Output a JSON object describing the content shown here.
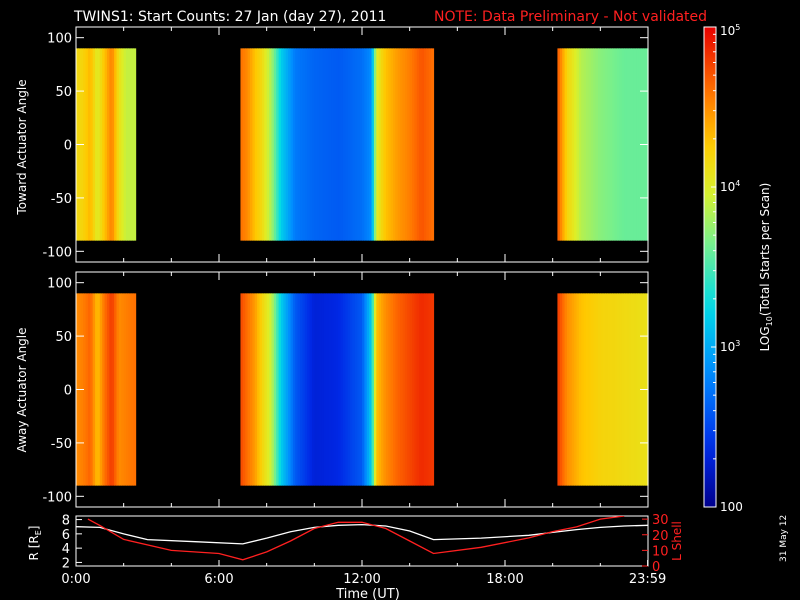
{
  "header": {
    "title": "TWINS1: Start Counts: 27 Jan (day  27), 2011",
    "note": "NOTE: Data Preliminary - Not validated",
    "note_color": "#ff2020"
  },
  "footer": {
    "date_stamp": "31 May 12"
  },
  "chart_data": [
    {
      "type": "heatmap",
      "title": "",
      "ylabel": "Toward Actuator Angle",
      "ylim": [
        -110,
        110
      ],
      "yticks": [
        100,
        50,
        0,
        -50,
        -100
      ],
      "y_data_range": [
        -90,
        90
      ],
      "x_hours_range": [
        0,
        24
      ],
      "data_blocks_hours": [
        [
          0,
          2.5
        ],
        [
          6.9,
          15.0
        ],
        [
          20.2,
          24
        ]
      ],
      "z_log10_profile": [
        {
          "t": 0.0,
          "v": 4.15
        },
        {
          "t": 0.3,
          "v": 4.2
        },
        {
          "t": 0.6,
          "v": 4.35
        },
        {
          "t": 0.9,
          "v": 4.0
        },
        {
          "t": 1.2,
          "v": 4.3
        },
        {
          "t": 1.5,
          "v": 4.55
        },
        {
          "t": 1.8,
          "v": 4.1
        },
        {
          "t": 2.1,
          "v": 3.9
        },
        {
          "t": 2.5,
          "v": 3.9
        },
        {
          "t": 6.9,
          "v": 4.6
        },
        {
          "t": 7.2,
          "v": 4.5
        },
        {
          "t": 7.5,
          "v": 4.3
        },
        {
          "t": 7.8,
          "v": 4.15
        },
        {
          "t": 8.2,
          "v": 3.8
        },
        {
          "t": 8.6,
          "v": 3.2
        },
        {
          "t": 9.2,
          "v": 2.75
        },
        {
          "t": 10.0,
          "v": 2.65
        },
        {
          "t": 11.0,
          "v": 2.6
        },
        {
          "t": 12.0,
          "v": 2.7
        },
        {
          "t": 12.4,
          "v": 2.85
        },
        {
          "t": 12.6,
          "v": 4.0
        },
        {
          "t": 13.0,
          "v": 4.3
        },
        {
          "t": 13.5,
          "v": 4.45
        },
        {
          "t": 14.0,
          "v": 4.55
        },
        {
          "t": 14.5,
          "v": 4.7
        },
        {
          "t": 15.0,
          "v": 4.6
        },
        {
          "t": 20.2,
          "v": 4.7
        },
        {
          "t": 20.6,
          "v": 4.2
        },
        {
          "t": 21.2,
          "v": 3.85
        },
        {
          "t": 22.0,
          "v": 3.7
        },
        {
          "t": 23.0,
          "v": 3.6
        },
        {
          "t": 24.0,
          "v": 3.6
        }
      ]
    },
    {
      "type": "heatmap",
      "title": "",
      "ylabel": "Away Actuator Angle",
      "ylim": [
        -110,
        110
      ],
      "yticks": [
        100,
        50,
        0,
        -50,
        -100
      ],
      "y_data_range": [
        -90,
        90
      ],
      "x_hours_range": [
        0,
        24
      ],
      "data_blocks_hours": [
        [
          0,
          2.5
        ],
        [
          6.9,
          15.0
        ],
        [
          20.2,
          24
        ]
      ],
      "z_log10_profile": [
        {
          "t": 0.0,
          "v": 4.5
        },
        {
          "t": 0.3,
          "v": 4.55
        },
        {
          "t": 0.6,
          "v": 4.65
        },
        {
          "t": 0.9,
          "v": 4.3
        },
        {
          "t": 1.2,
          "v": 4.6
        },
        {
          "t": 1.5,
          "v": 4.8
        },
        {
          "t": 1.8,
          "v": 4.5
        },
        {
          "t": 2.1,
          "v": 4.55
        },
        {
          "t": 2.5,
          "v": 4.6
        },
        {
          "t": 6.9,
          "v": 4.75
        },
        {
          "t": 7.2,
          "v": 4.6
        },
        {
          "t": 7.5,
          "v": 4.45
        },
        {
          "t": 7.8,
          "v": 4.2
        },
        {
          "t": 8.2,
          "v": 3.9
        },
        {
          "t": 8.6,
          "v": 3.2
        },
        {
          "t": 9.2,
          "v": 2.6
        },
        {
          "t": 10.0,
          "v": 2.3
        },
        {
          "t": 11.0,
          "v": 2.35
        },
        {
          "t": 12.0,
          "v": 2.6
        },
        {
          "t": 12.4,
          "v": 3.2
        },
        {
          "t": 12.6,
          "v": 4.3
        },
        {
          "t": 13.0,
          "v": 4.5
        },
        {
          "t": 13.5,
          "v": 4.65
        },
        {
          "t": 14.0,
          "v": 4.75
        },
        {
          "t": 14.5,
          "v": 4.85
        },
        {
          "t": 15.0,
          "v": 4.8
        },
        {
          "t": 20.2,
          "v": 4.8
        },
        {
          "t": 20.6,
          "v": 4.5
        },
        {
          "t": 21.2,
          "v": 4.3
        },
        {
          "t": 22.0,
          "v": 4.2
        },
        {
          "t": 23.0,
          "v": 4.15
        },
        {
          "t": 24.0,
          "v": 4.1
        }
      ]
    },
    {
      "type": "line",
      "title": "",
      "xlabel": "Time (UT)",
      "xticks": [
        "0:00",
        "6:00",
        "12:00",
        "18:00",
        "23:59"
      ],
      "xtick_hours": [
        0,
        6,
        12,
        18,
        23.983
      ],
      "left_axis": {
        "label": "R [R",
        "subscript": "E",
        "label_end": "]",
        "ylim": [
          1.5,
          8.5
        ],
        "yticks": [
          2,
          4,
          6,
          8
        ]
      },
      "right_axis": {
        "label": "L Shell",
        "color": "#ff2020",
        "ylim": [
          0,
          32
        ],
        "yticks": [
          0,
          10,
          20,
          30
        ]
      },
      "series": [
        {
          "name": "",
          "axis": "left",
          "color": "#ffffff",
          "x": [
            0,
            1,
            2,
            3,
            5,
            7,
            8,
            9,
            10,
            11,
            12,
            13,
            14,
            15,
            17,
            19,
            20,
            21,
            22,
            23,
            24
          ],
          "y": [
            7.0,
            6.9,
            6.0,
            5.2,
            4.9,
            4.6,
            5.4,
            6.3,
            6.9,
            7.2,
            7.3,
            7.1,
            6.4,
            5.2,
            5.4,
            5.8,
            6.2,
            6.6,
            6.9,
            7.1,
            7.2
          ]
        },
        {
          "name": "",
          "axis": "right",
          "color": "#ff2020",
          "x": [
            0.5,
            1,
            2,
            4,
            6,
            7,
            8,
            9,
            10,
            11,
            12,
            13,
            14,
            15,
            17,
            19,
            20,
            21,
            22,
            23
          ],
          "y": [
            30,
            26,
            17,
            10,
            8,
            4,
            9,
            16,
            24,
            28,
            28,
            24,
            16,
            8,
            12,
            18,
            22,
            25,
            30,
            32
          ]
        }
      ]
    }
  ],
  "colorbar": {
    "label_prefix": "LOG",
    "label_subscript": "10",
    "label_suffix": "(Total Starts per Scan)",
    "ticks": [
      {
        "base": "10",
        "exp": "5",
        "value": 5
      },
      {
        "base": "10",
        "exp": "4",
        "value": 4
      },
      {
        "base": "10",
        "exp": "3",
        "value": 3
      },
      {
        "base": "100",
        "exp": "",
        "value": 2
      }
    ],
    "zlim_log10": [
      2,
      5
    ]
  }
}
